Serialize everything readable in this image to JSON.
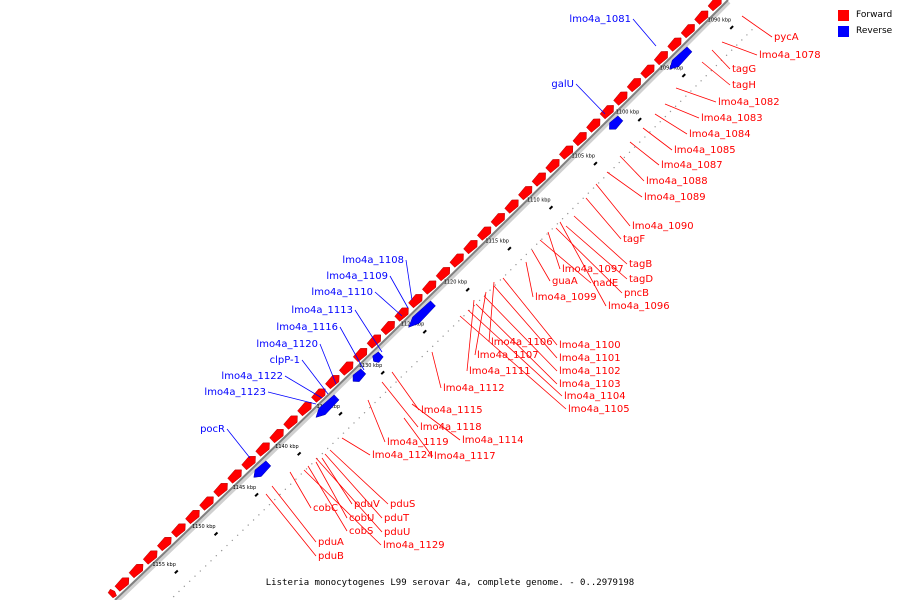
{
  "legend": [
    {
      "label": "Forward",
      "color": "#ff0000"
    },
    {
      "label": "Reverse",
      "color": "#0000ff"
    }
  ],
  "caption": "Listeria monocytogenes L99 serovar 4a, complete genome. - 0..2979198",
  "colors": {
    "forward": "#ff0000",
    "reverse": "#0000ff",
    "backbone": "#808080",
    "label_line_forward": "#ff0000",
    "label_line_reverse": "#0000ff"
  },
  "ticks": [
    {
      "label": "1090 kbp"
    },
    {
      "label": "1095 kbp"
    },
    {
      "label": "1100 kbp"
    },
    {
      "label": "1105 kbp"
    },
    {
      "label": "1110 kbp"
    },
    {
      "label": "1115 kbp"
    },
    {
      "label": "1120 kbp"
    },
    {
      "label": "1125 kbp"
    },
    {
      "label": "1130 kbp"
    },
    {
      "label": "1135 kbp"
    },
    {
      "label": "1140 kbp"
    },
    {
      "label": "1145 kbp"
    },
    {
      "label": "1150 kbp"
    },
    {
      "label": "1155 kbp"
    }
  ],
  "reverse_gene_labels": [
    "lmo4a_1081",
    "galU",
    "lmo4a_1108",
    "lmo4a_1109",
    "lmo4a_1110",
    "lmo4a_1113",
    "lmo4a_1116",
    "lmo4a_1120",
    "clpP-1",
    "lmo4a_1122",
    "lmo4a_1123",
    "pocR"
  ],
  "forward_gene_labels": [
    "pycA",
    "lmo4a_1078",
    "tagG",
    "tagH",
    "lmo4a_1082",
    "lmo4a_1083",
    "lmo4a_1084",
    "lmo4a_1085",
    "lmo4a_1087",
    "lmo4a_1088",
    "lmo4a_1089",
    "lmo4a_1090",
    "tagF",
    "tagB",
    "tagD",
    "lmo4a_1097",
    "nadE",
    "guaA",
    "pncB",
    "lmo4a_1099",
    "lmo4a_1096",
    "lmo4a_1106",
    "lmo4a_1100",
    "lmo4a_1101",
    "lmo4a_1107",
    "lmo4a_1102",
    "lmo4a_1111",
    "lmo4a_1103",
    "lmo4a_1112",
    "lmo4a_1104",
    "lmo4a_1105",
    "lmo4a_1115",
    "lmo4a_1118",
    "lmo4a_1114",
    "lmo4a_1119",
    "lmo4a_1124",
    "lmo4a_1117",
    "pduV",
    "pduS",
    "cobC",
    "cobU",
    "pduT",
    "cobS",
    "pduU",
    "lmo4a_1129",
    "pduA",
    "pduB"
  ]
}
